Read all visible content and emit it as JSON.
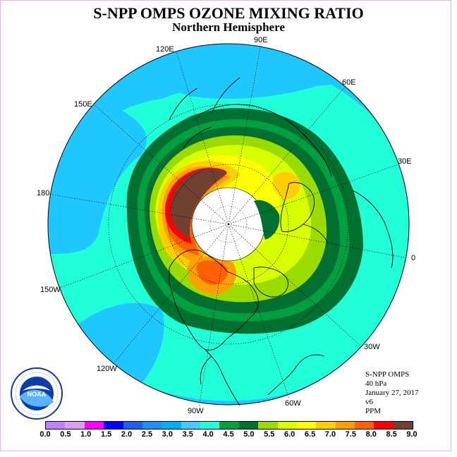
{
  "title": "S-NPP OMPS OZONE MIXING RATIO",
  "subtitle": "Northern Hemisphere",
  "longitude_labels": {
    "lon_120e": "120E",
    "lon_90e": "90E",
    "lon_60e": "60E",
    "lon_30e": "30E",
    "lon_0": "0",
    "lon_150e": "150E",
    "lon_180": "180",
    "lon_150w": "150W",
    "lon_120w": "120W",
    "lon_90w": "90W",
    "lon_60w": "60W",
    "lon_30w": "30W"
  },
  "info": {
    "instrument": "S-NPP OMPS",
    "level": "40 hPa",
    "date": "January 27, 2017",
    "version": "v6",
    "units": "PPM"
  },
  "logo": {
    "text": "NOAA",
    "icon": "noaa-logo"
  },
  "colorbar": {
    "ticks": [
      "0.0",
      "0.5",
      "1.0",
      "1.5",
      "2.0",
      "2.5",
      "3.0",
      "3.5",
      "4.0",
      "4.5",
      "5.0",
      "5.5",
      "6.0",
      "6.5",
      "7.0",
      "7.5",
      "8.0",
      "8.5",
      "9.0"
    ],
    "colors": [
      "#c080ff",
      "#d8a0f0",
      "#ff00ff",
      "#0000ff",
      "#2060f0",
      "#1e90ff",
      "#00b0ff",
      "#40d0ff",
      "#20ffd8",
      "#00a040",
      "#007030",
      "#9adc00",
      "#d8ff00",
      "#ffff00",
      "#ffd000",
      "#ffa000",
      "#ff6000",
      "#ff0000",
      "#704030"
    ]
  },
  "colors": {
    "ocean_background": "#20ffd8",
    "outer_band": "#1ec8ff",
    "vortex_center": "#ffffff"
  }
}
